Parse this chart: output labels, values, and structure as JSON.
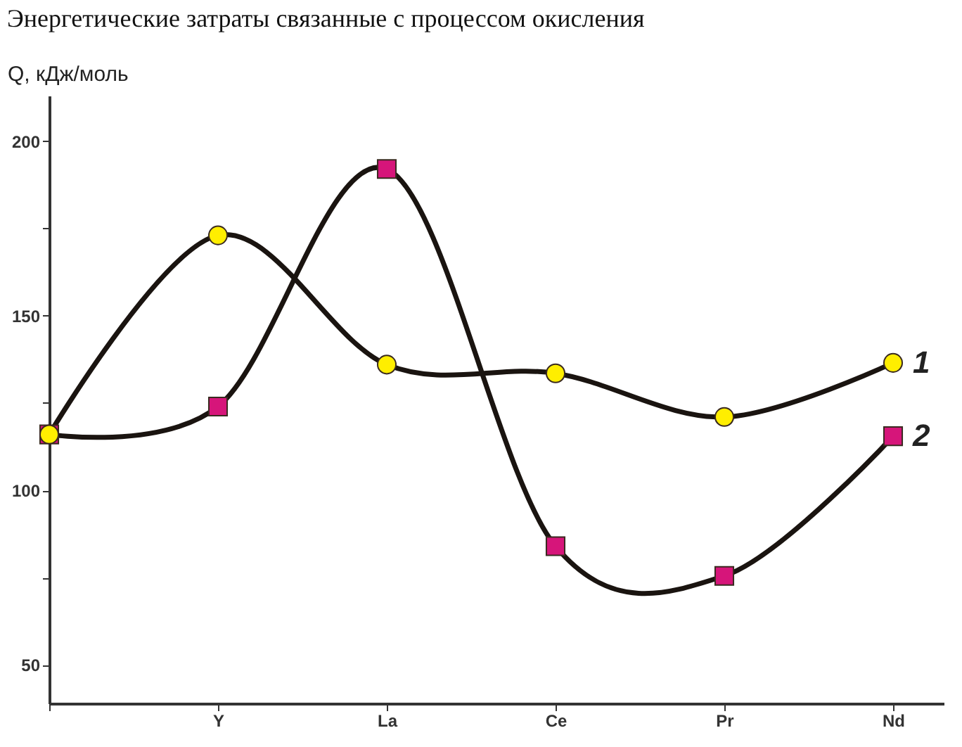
{
  "chart_data": {
    "type": "line",
    "title": "Энергетические затраты связанные с процессом окисления",
    "ylabel": "Q, кДж/моль",
    "categories": [
      null,
      "Y",
      "La",
      "Ce",
      "Pr",
      "Nd"
    ],
    "series": [
      {
        "name": "1",
        "color": "#ffee00",
        "marker": "circle",
        "values": [
          116,
          173,
          136,
          133.5,
          121,
          136.5
        ]
      },
      {
        "name": "2",
        "color": "#d6157a",
        "marker": "square",
        "values": [
          116,
          124,
          192,
          84,
          75.5,
          115.5
        ]
      }
    ],
    "ylim": [
      39,
      213
    ],
    "yticks": [
      50,
      {
        "value": 75,
        "label": null
      },
      100,
      {
        "value": 125,
        "label": null
      },
      150,
      {
        "value": 175,
        "label": null
      },
      200
    ],
    "grid": false,
    "line_style": "solid"
  }
}
